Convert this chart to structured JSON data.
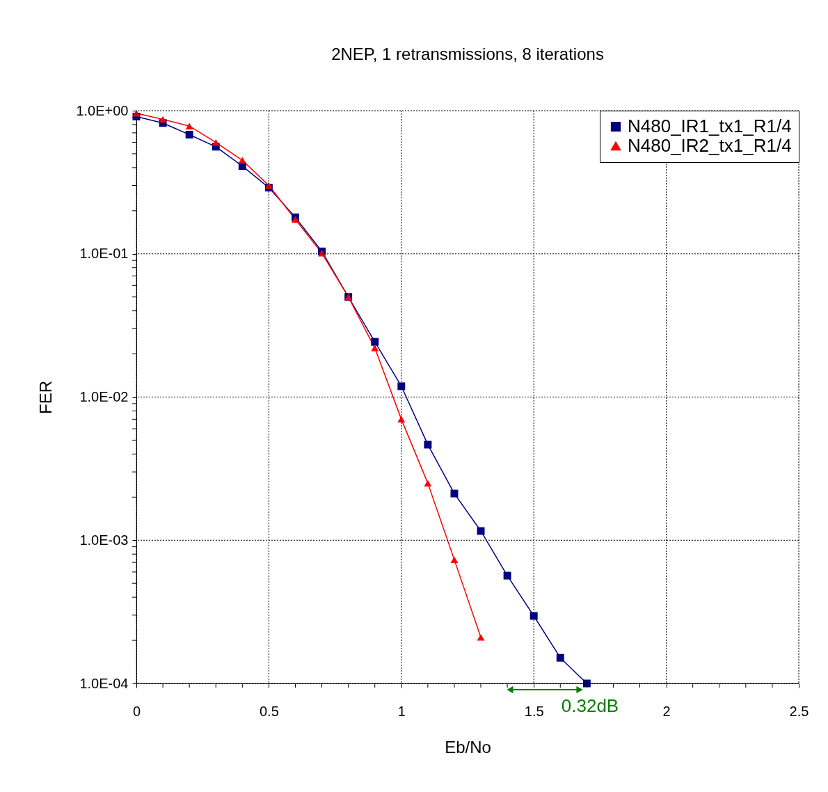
{
  "chart_data": {
    "type": "line",
    "title": "2NEP, 1 retransmissions, 8 iterations",
    "xlabel": "Eb/No",
    "ylabel": "FER",
    "log": "y",
    "grid": true,
    "legend": "top right",
    "line_style": "solid",
    "xlim": [
      0,
      2.5
    ],
    "xticks": [
      0,
      {
        "value": 0.1,
        "label": null
      },
      {
        "value": 0.2,
        "label": null
      },
      {
        "value": 0.3,
        "label": null
      },
      {
        "value": 0.4,
        "label": null
      },
      0.5,
      {
        "value": 0.6,
        "label": null
      },
      {
        "value": 0.7,
        "label": null
      },
      {
        "value": 0.8,
        "label": null
      },
      {
        "value": 0.9,
        "label": null
      },
      1,
      {
        "value": 1.1,
        "label": null
      },
      {
        "value": 1.2,
        "label": null
      },
      {
        "value": 1.3,
        "label": null
      },
      {
        "value": 1.4,
        "label": null
      },
      1.5,
      {
        "value": 1.6,
        "label": null
      },
      {
        "value": 1.7,
        "label": null
      },
      {
        "value": 1.8,
        "label": null
      },
      {
        "value": 1.9,
        "label": null
      },
      2,
      {
        "value": 2.1,
        "label": null
      },
      {
        "value": 2.2,
        "label": null
      },
      {
        "value": 2.3,
        "label": null
      },
      {
        "value": 2.4,
        "label": null
      },
      2.5
    ],
    "ylim": [
      0.0001,
      1
    ],
    "yticks": [
      {
        "value": 0.0001,
        "label": "1.0E-04"
      },
      {
        "value": 0.0002,
        "label": null
      },
      {
        "value": 0.0003,
        "label": null
      },
      {
        "value": 0.0004,
        "label": null
      },
      {
        "value": 0.0005,
        "label": null
      },
      {
        "value": 0.0006,
        "label": null
      },
      {
        "value": 0.0007,
        "label": null
      },
      {
        "value": 0.0008,
        "label": null
      },
      {
        "value": 0.0009,
        "label": null
      },
      {
        "value": 0.001,
        "label": "1.0E-03"
      },
      {
        "value": 0.002,
        "label": null
      },
      {
        "value": 0.003,
        "label": null
      },
      {
        "value": 0.004,
        "label": null
      },
      {
        "value": 0.005,
        "label": null
      },
      {
        "value": 0.006,
        "label": null
      },
      {
        "value": 0.007,
        "label": null
      },
      {
        "value": 0.008,
        "label": null
      },
      {
        "value": 0.009,
        "label": null
      },
      {
        "value": 0.01,
        "label": "1.0E-02"
      },
      {
        "value": 0.02,
        "label": null
      },
      {
        "value": 0.03,
        "label": null
      },
      {
        "value": 0.04,
        "label": null
      },
      {
        "value": 0.05,
        "label": null
      },
      {
        "value": 0.06,
        "label": null
      },
      {
        "value": 0.07,
        "label": null
      },
      {
        "value": 0.08,
        "label": null
      },
      {
        "value": 0.09,
        "label": null
      },
      {
        "value": 0.1,
        "label": "1.0E-01"
      },
      {
        "value": 0.2,
        "label": null
      },
      {
        "value": 0.3,
        "label": null
      },
      {
        "value": 0.4,
        "label": null
      },
      {
        "value": 0.5,
        "label": null
      },
      {
        "value": 0.6,
        "label": null
      },
      {
        "value": 0.7,
        "label": null
      },
      {
        "value": 0.8,
        "label": null
      },
      {
        "value": 0.9,
        "label": null
      },
      {
        "value": 1,
        "label": "1.0E+00"
      }
    ],
    "annotations": [
      "0.32dB"
    ],
    "series": [
      {
        "name": "N480_IR1_tx1_R1/4",
        "color": "#000080",
        "marker": "square",
        "x": [
          0,
          0.1,
          0.2,
          0.3,
          0.4,
          0.5,
          0.6,
          0.7,
          0.8,
          0.9,
          1.0,
          1.1,
          1.2,
          1.3,
          1.4,
          1.5,
          1.6,
          1.7
        ],
        "values": [
          0.91,
          0.82,
          0.68,
          0.56,
          0.41,
          0.29,
          0.18,
          0.104,
          0.05,
          0.0243,
          0.0119,
          0.00465,
          0.00212,
          0.00116,
          0.000566,
          0.000296,
          0.000151,
          0.0001
        ]
      },
      {
        "name": "N480_IR2_tx1_R1/4",
        "color": "#ff0000",
        "marker": "triangle",
        "x": [
          0,
          0.1,
          0.2,
          0.3,
          0.4,
          0.5,
          0.6,
          0.7,
          0.8,
          0.9,
          1.0,
          1.1,
          1.2,
          1.3
        ],
        "values": [
          0.96,
          0.87,
          0.78,
          0.6,
          0.45,
          0.3,
          0.174,
          0.101,
          0.05,
          0.022,
          0.007,
          0.0025,
          0.00073,
          0.00021
        ]
      }
    ]
  }
}
